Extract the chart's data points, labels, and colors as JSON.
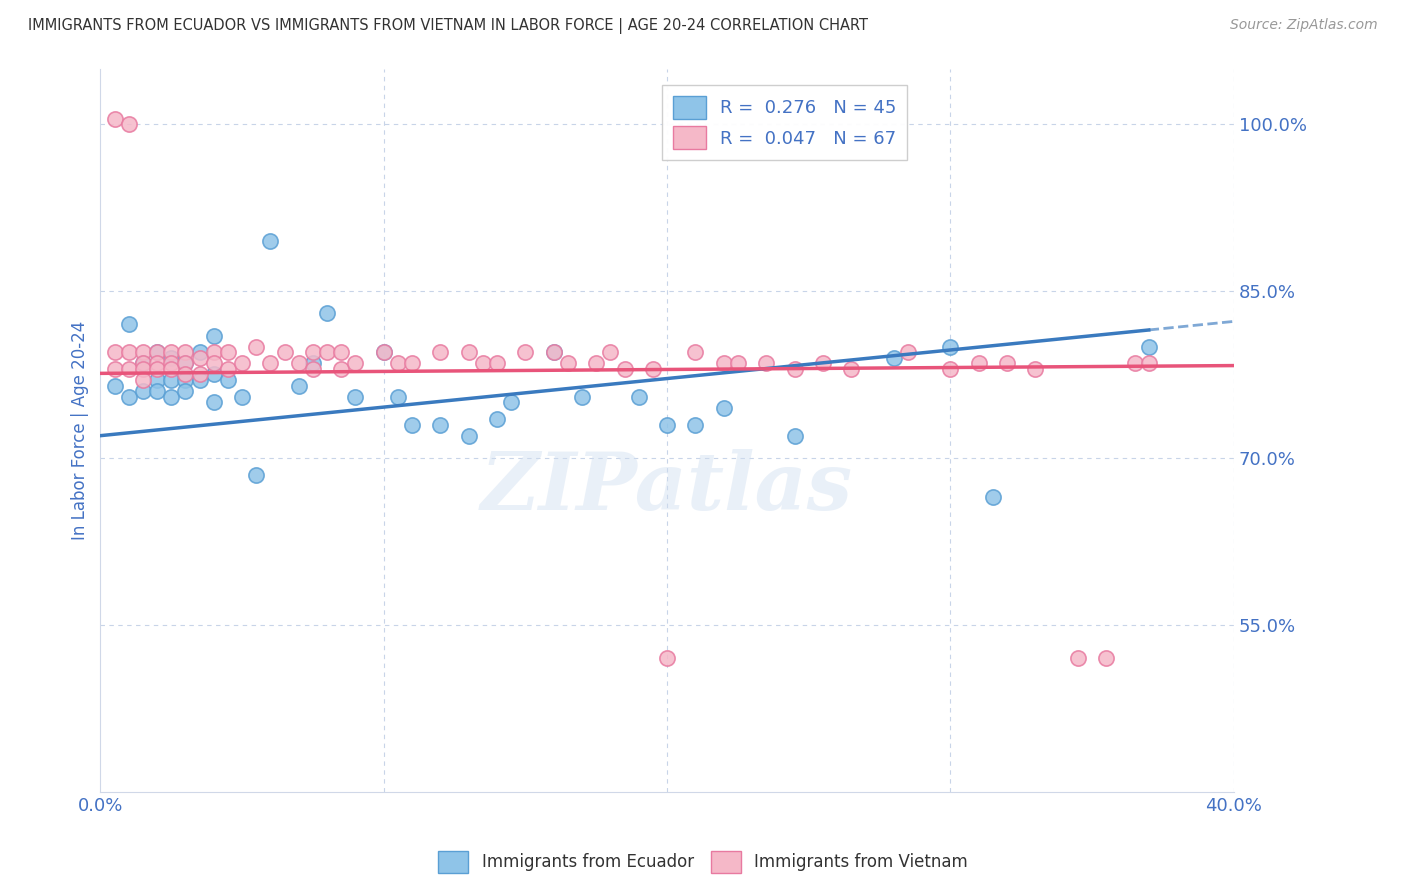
{
  "title": "IMMIGRANTS FROM ECUADOR VS IMMIGRANTS FROM VIETNAM IN LABOR FORCE | AGE 20-24 CORRELATION CHART",
  "source": "Source: ZipAtlas.com",
  "ylabel": "In Labor Force | Age 20-24",
  "watermark": "ZIPatlas",
  "ecuador_R": 0.276,
  "ecuador_N": 45,
  "vietnam_R": 0.047,
  "vietnam_N": 67,
  "xlim": [
    0.0,
    0.4
  ],
  "ylim": [
    0.4,
    1.05
  ],
  "right_yticks": [
    0.55,
    0.7,
    0.85,
    1.0
  ],
  "right_yticklabels": [
    "55.0%",
    "70.0%",
    "85.0%",
    "100.0%"
  ],
  "ecuador_color": "#8fc4e8",
  "vietnam_color": "#f5b8c8",
  "ecuador_edge_color": "#5a9fd4",
  "vietnam_edge_color": "#e87aa0",
  "ecuador_trend_color": "#3a7abf",
  "vietnam_trend_color": "#e8547a",
  "grid_color": "#c8d4e8",
  "background_color": "#ffffff",
  "title_color": "#333333",
  "axis_label_color": "#4472c4",
  "tick_color": "#4472c4",
  "ecuador_scatter_x": [
    0.005,
    0.01,
    0.01,
    0.015,
    0.015,
    0.02,
    0.02,
    0.02,
    0.025,
    0.025,
    0.025,
    0.03,
    0.03,
    0.03,
    0.035,
    0.035,
    0.04,
    0.04,
    0.04,
    0.045,
    0.05,
    0.055,
    0.06,
    0.07,
    0.075,
    0.08,
    0.09,
    0.1,
    0.105,
    0.11,
    0.12,
    0.13,
    0.14,
    0.145,
    0.16,
    0.17,
    0.19,
    0.2,
    0.21,
    0.22,
    0.245,
    0.28,
    0.3,
    0.315,
    0.37
  ],
  "ecuador_scatter_y": [
    0.765,
    0.82,
    0.755,
    0.785,
    0.76,
    0.795,
    0.77,
    0.76,
    0.79,
    0.77,
    0.755,
    0.785,
    0.77,
    0.76,
    0.795,
    0.77,
    0.81,
    0.775,
    0.75,
    0.77,
    0.755,
    0.685,
    0.895,
    0.765,
    0.785,
    0.83,
    0.755,
    0.795,
    0.755,
    0.73,
    0.73,
    0.72,
    0.735,
    0.75,
    0.795,
    0.755,
    0.755,
    0.73,
    0.73,
    0.745,
    0.72,
    0.79,
    0.8,
    0.665,
    0.8
  ],
  "vietnam_scatter_x": [
    0.005,
    0.005,
    0.005,
    0.01,
    0.01,
    0.01,
    0.015,
    0.015,
    0.015,
    0.015,
    0.02,
    0.02,
    0.02,
    0.025,
    0.025,
    0.025,
    0.03,
    0.03,
    0.03,
    0.035,
    0.035,
    0.04,
    0.04,
    0.045,
    0.045,
    0.05,
    0.055,
    0.06,
    0.065,
    0.07,
    0.075,
    0.075,
    0.08,
    0.085,
    0.085,
    0.09,
    0.1,
    0.105,
    0.11,
    0.12,
    0.13,
    0.135,
    0.14,
    0.15,
    0.16,
    0.165,
    0.175,
    0.18,
    0.185,
    0.195,
    0.21,
    0.22,
    0.225,
    0.235,
    0.245,
    0.255,
    0.265,
    0.285,
    0.3,
    0.31,
    0.32,
    0.33,
    0.345,
    0.355,
    0.365,
    0.37,
    0.2
  ],
  "vietnam_scatter_y": [
    0.795,
    0.78,
    1.005,
    0.795,
    0.78,
    1.0,
    0.795,
    0.785,
    0.78,
    0.77,
    0.795,
    0.785,
    0.78,
    0.795,
    0.785,
    0.78,
    0.795,
    0.785,
    0.775,
    0.79,
    0.775,
    0.795,
    0.785,
    0.795,
    0.78,
    0.785,
    0.8,
    0.785,
    0.795,
    0.785,
    0.795,
    0.78,
    0.795,
    0.795,
    0.78,
    0.785,
    0.795,
    0.785,
    0.785,
    0.795,
    0.795,
    0.785,
    0.785,
    0.795,
    0.795,
    0.785,
    0.785,
    0.795,
    0.78,
    0.78,
    0.795,
    0.785,
    0.785,
    0.785,
    0.78,
    0.785,
    0.78,
    0.795,
    0.78,
    0.785,
    0.785,
    0.78,
    0.52,
    0.52,
    0.785,
    0.785,
    0.52
  ]
}
